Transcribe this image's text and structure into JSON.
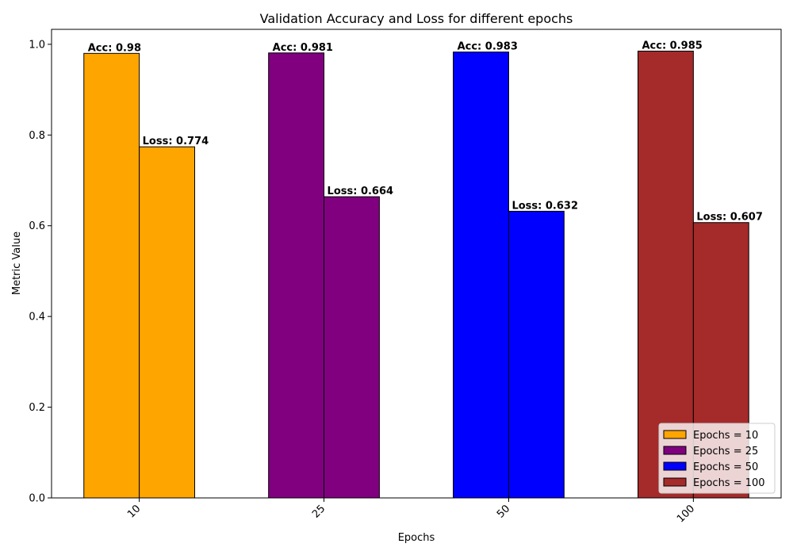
{
  "chart_data": {
    "type": "bar",
    "title": "Validation Accuracy and Loss for different epochs",
    "xlabel": "Epochs",
    "ylabel": "Metric Value",
    "ylim": [
      0,
      1.033
    ],
    "yticks": [
      "0.0",
      "0.2",
      "0.4",
      "0.6",
      "0.8",
      "1.0"
    ],
    "ytick_values": [
      0,
      0.2,
      0.4,
      0.6,
      0.8,
      1.0
    ],
    "categories": [
      "10",
      "25",
      "50",
      "100"
    ],
    "accuracy": [
      0.98,
      0.981,
      0.983,
      0.985
    ],
    "loss": [
      0.774,
      0.664,
      0.632,
      0.607
    ],
    "accuracy_labels": [
      "Acc: 0.98",
      "Acc: 0.981",
      "Acc: 0.983",
      "Acc: 0.985"
    ],
    "loss_labels": [
      "Loss: 0.774",
      "Loss: 0.664",
      "Loss: 0.632",
      "Loss: 0.607"
    ],
    "colors": [
      "#ffa500",
      "#800080",
      "#0000ff",
      "#a52a2a"
    ],
    "legend": {
      "placement": "lower-right",
      "entries": [
        "Epochs = 10",
        "Epochs = 25",
        "Epochs = 50",
        "Epochs = 100"
      ]
    },
    "grid": false,
    "xtick_rotation": 45
  }
}
